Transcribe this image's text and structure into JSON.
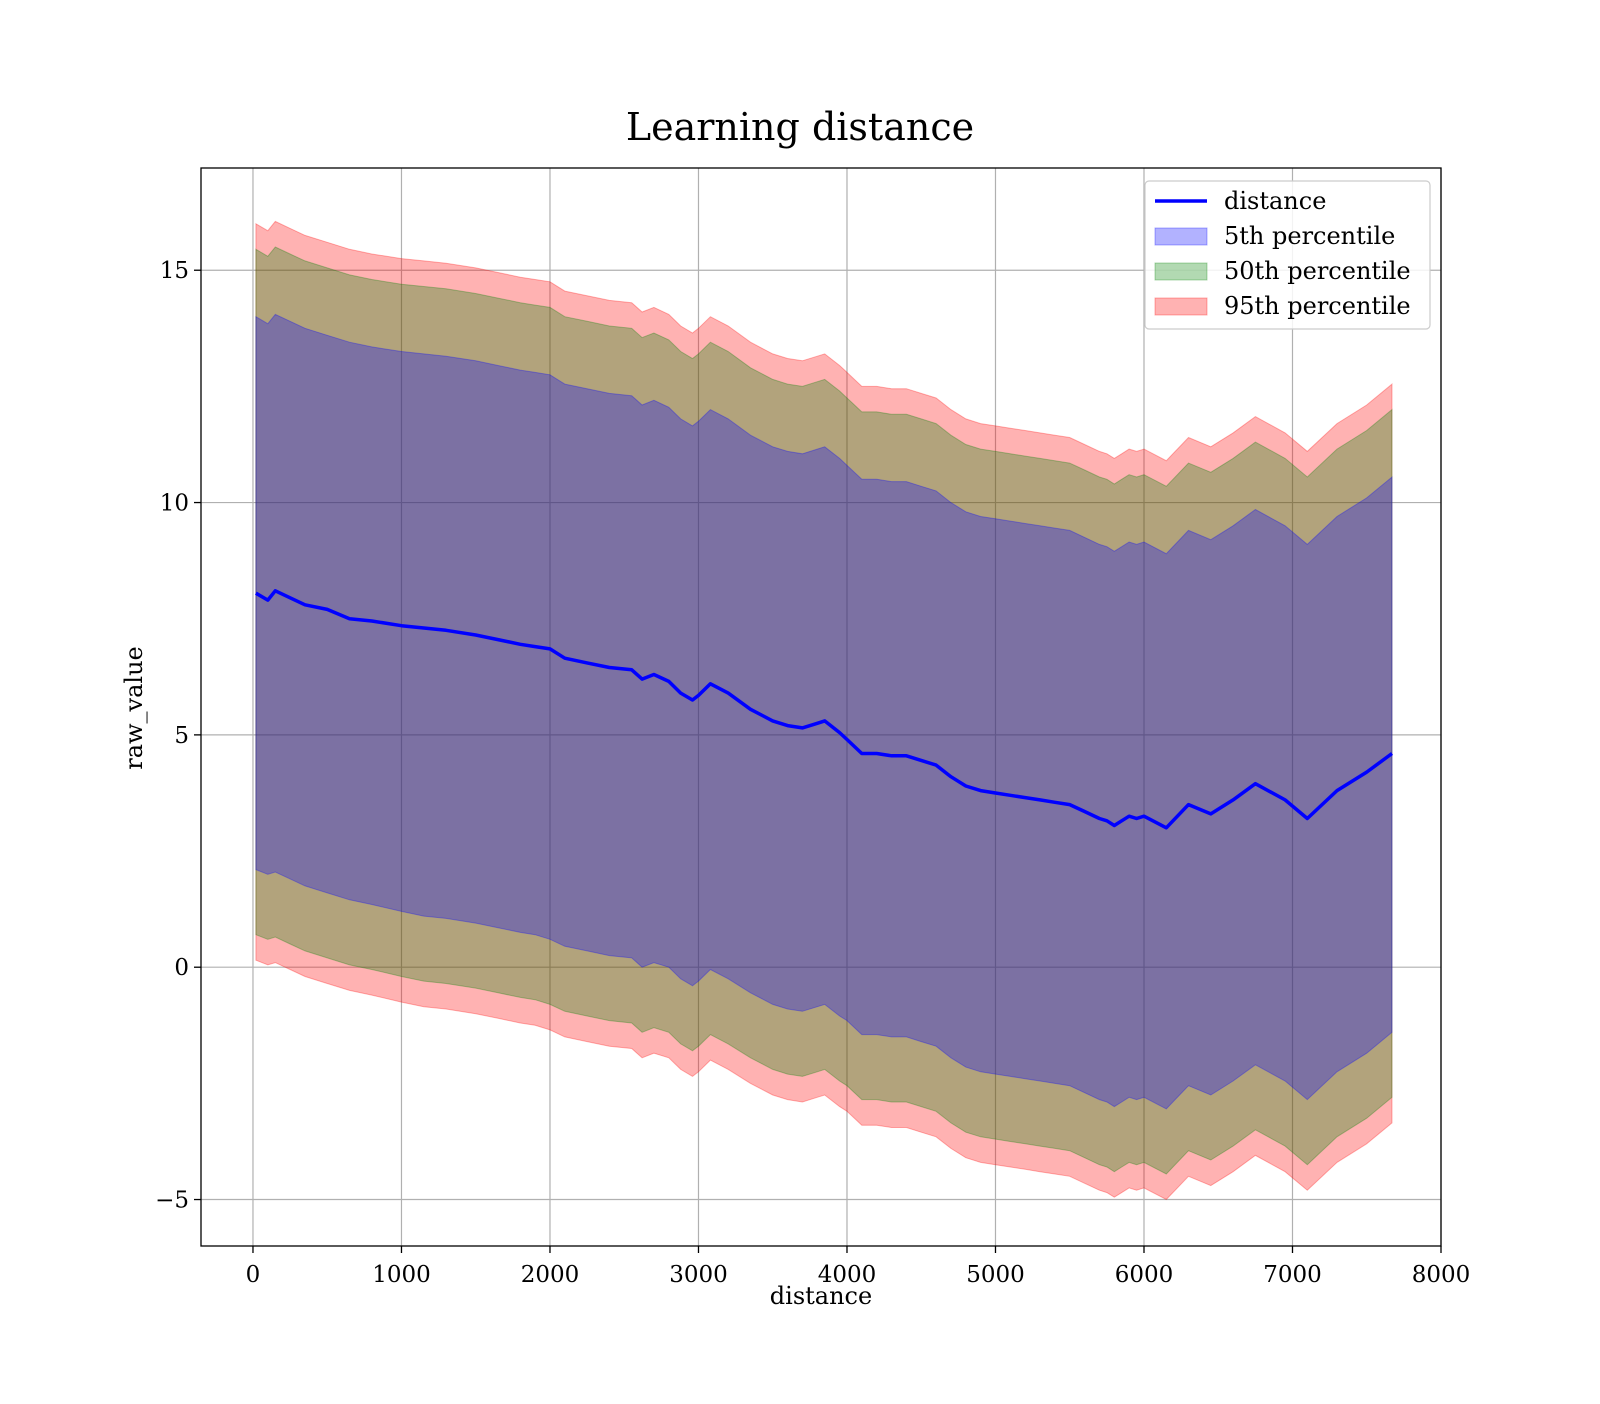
{
  "chart_data": {
    "type": "line",
    "title": "Learning distance",
    "xlabel": "distance",
    "ylabel": "raw_value",
    "xlim": [
      -350,
      8000
    ],
    "ylim": [
      -6,
      17.2
    ],
    "xticks": [
      0,
      1000,
      2000,
      3000,
      4000,
      5000,
      6000,
      7000,
      8000
    ],
    "xtick_labels": [
      "0",
      "1000",
      "2000",
      "3000",
      "4000",
      "5000",
      "6000",
      "7000",
      "8000"
    ],
    "yticks": [
      -5,
      0,
      5,
      10,
      15
    ],
    "ytick_labels": [
      "−5",
      "0",
      "5",
      "10",
      "15"
    ],
    "grid": true,
    "legend_position": "top-right",
    "legend": [
      "distance",
      "5th percentile",
      "50th percentile",
      "95th percentile"
    ],
    "x": [
      20,
      100,
      150,
      250,
      350,
      500,
      650,
      800,
      1000,
      1150,
      1300,
      1500,
      1650,
      1800,
      1900,
      2000,
      2100,
      2250,
      2400,
      2550,
      2620,
      2700,
      2800,
      2880,
      2960,
      3000,
      3080,
      3200,
      3350,
      3500,
      3600,
      3700,
      3800,
      3850,
      3950,
      4000,
      4100,
      4200,
      4300,
      4400,
      4500,
      4600,
      4700,
      4800,
      4900,
      5000,
      5100,
      5200,
      5300,
      5400,
      5500,
      5600,
      5700,
      5750,
      5800,
      5850,
      5900,
      5950,
      6000,
      6150,
      6300,
      6450,
      6600,
      6750,
      6950,
      7100,
      7300,
      7500,
      7670
    ],
    "series": [
      {
        "name": "distance",
        "color": "#0000ff",
        "values": [
          8.05,
          7.9,
          8.1,
          7.95,
          7.8,
          7.7,
          7.5,
          7.45,
          7.35,
          7.3,
          7.25,
          7.15,
          7.05,
          6.95,
          6.9,
          6.85,
          6.65,
          6.55,
          6.45,
          6.4,
          6.2,
          6.3,
          6.15,
          5.9,
          5.75,
          5.85,
          6.1,
          5.9,
          5.55,
          5.3,
          5.2,
          5.15,
          5.25,
          5.3,
          5.05,
          4.9,
          4.6,
          4.6,
          4.55,
          4.55,
          4.45,
          4.35,
          4.1,
          3.9,
          3.8,
          3.75,
          3.7,
          3.65,
          3.6,
          3.55,
          3.5,
          3.35,
          3.2,
          3.15,
          3.05,
          3.15,
          3.25,
          3.2,
          3.25,
          3.0,
          3.5,
          3.3,
          3.6,
          3.95,
          3.6,
          3.2,
          3.8,
          4.2,
          4.6
        ]
      },
      {
        "name": "5th percentile",
        "color": "#0000ff",
        "lower": [
          2.1,
          2.0,
          2.05,
          1.9,
          1.75,
          1.6,
          1.45,
          1.35,
          1.2,
          1.1,
          1.05,
          0.95,
          0.85,
          0.75,
          0.7,
          0.6,
          0.45,
          0.35,
          0.25,
          0.2,
          0.0,
          0.1,
          0.0,
          -0.25,
          -0.4,
          -0.3,
          -0.05,
          -0.25,
          -0.55,
          -0.8,
          -0.9,
          -0.95,
          -0.85,
          -0.8,
          -1.05,
          -1.15,
          -1.45,
          -1.45,
          -1.5,
          -1.5,
          -1.6,
          -1.7,
          -1.95,
          -2.15,
          -2.25,
          -2.3,
          -2.35,
          -2.4,
          -2.45,
          -2.5,
          -2.55,
          -2.7,
          -2.85,
          -2.9,
          -3.0,
          -2.9,
          -2.8,
          -2.85,
          -2.8,
          -3.05,
          -2.55,
          -2.75,
          -2.45,
          -2.1,
          -2.45,
          -2.85,
          -2.25,
          -1.85,
          -1.4
        ],
        "upper": [
          14.0,
          13.85,
          14.05,
          13.9,
          13.75,
          13.6,
          13.45,
          13.35,
          13.25,
          13.2,
          13.15,
          13.05,
          12.95,
          12.85,
          12.8,
          12.75,
          12.55,
          12.45,
          12.35,
          12.3,
          12.1,
          12.2,
          12.05,
          11.8,
          11.65,
          11.75,
          12.0,
          11.8,
          11.45,
          11.2,
          11.1,
          11.05,
          11.15,
          11.2,
          10.95,
          10.8,
          10.5,
          10.5,
          10.45,
          10.45,
          10.35,
          10.25,
          10.0,
          9.8,
          9.7,
          9.65,
          9.6,
          9.55,
          9.5,
          9.45,
          9.4,
          9.25,
          9.1,
          9.05,
          8.95,
          9.05,
          9.15,
          9.1,
          9.15,
          8.9,
          9.4,
          9.2,
          9.5,
          9.85,
          9.5,
          9.1,
          9.7,
          10.1,
          10.55
        ]
      },
      {
        "name": "50th percentile",
        "color": "#008000",
        "lower": [
          0.7,
          0.6,
          0.65,
          0.5,
          0.35,
          0.2,
          0.05,
          -0.05,
          -0.2,
          -0.3,
          -0.35,
          -0.45,
          -0.55,
          -0.65,
          -0.7,
          -0.8,
          -0.95,
          -1.05,
          -1.15,
          -1.2,
          -1.4,
          -1.3,
          -1.4,
          -1.65,
          -1.8,
          -1.7,
          -1.45,
          -1.65,
          -1.95,
          -2.2,
          -2.3,
          -2.35,
          -2.25,
          -2.2,
          -2.45,
          -2.55,
          -2.85,
          -2.85,
          -2.9,
          -2.9,
          -3.0,
          -3.1,
          -3.35,
          -3.55,
          -3.65,
          -3.7,
          -3.75,
          -3.8,
          -3.85,
          -3.9,
          -3.95,
          -4.1,
          -4.25,
          -4.3,
          -4.4,
          -4.3,
          -4.2,
          -4.25,
          -4.2,
          -4.45,
          -3.95,
          -4.15,
          -3.85,
          -3.5,
          -3.85,
          -4.25,
          -3.65,
          -3.25,
          -2.8
        ],
        "upper": [
          15.45,
          15.3,
          15.5,
          15.35,
          15.2,
          15.05,
          14.9,
          14.8,
          14.7,
          14.65,
          14.6,
          14.5,
          14.4,
          14.3,
          14.25,
          14.2,
          14.0,
          13.9,
          13.8,
          13.75,
          13.55,
          13.65,
          13.5,
          13.25,
          13.1,
          13.2,
          13.45,
          13.25,
          12.9,
          12.65,
          12.55,
          12.5,
          12.6,
          12.65,
          12.4,
          12.25,
          11.95,
          11.95,
          11.9,
          11.9,
          11.8,
          11.7,
          11.45,
          11.25,
          11.15,
          11.1,
          11.05,
          11.0,
          10.95,
          10.9,
          10.85,
          10.7,
          10.55,
          10.5,
          10.4,
          10.5,
          10.6,
          10.55,
          10.6,
          10.35,
          10.85,
          10.65,
          10.95,
          11.3,
          10.95,
          10.55,
          11.15,
          11.55,
          12.0
        ]
      },
      {
        "name": "95th percentile",
        "color": "#ff0000",
        "lower": [
          0.15,
          0.05,
          0.1,
          -0.05,
          -0.2,
          -0.35,
          -0.5,
          -0.6,
          -0.75,
          -0.85,
          -0.9,
          -1.0,
          -1.1,
          -1.2,
          -1.25,
          -1.35,
          -1.5,
          -1.6,
          -1.7,
          -1.75,
          -1.95,
          -1.85,
          -1.95,
          -2.2,
          -2.35,
          -2.25,
          -2.0,
          -2.2,
          -2.5,
          -2.75,
          -2.85,
          -2.9,
          -2.8,
          -2.75,
          -3.0,
          -3.1,
          -3.4,
          -3.4,
          -3.45,
          -3.45,
          -3.55,
          -3.65,
          -3.9,
          -4.1,
          -4.2,
          -4.25,
          -4.3,
          -4.35,
          -4.4,
          -4.45,
          -4.5,
          -4.65,
          -4.8,
          -4.85,
          -4.95,
          -4.85,
          -4.75,
          -4.8,
          -4.75,
          -5.0,
          -4.5,
          -4.7,
          -4.4,
          -4.05,
          -4.4,
          -4.8,
          -4.2,
          -3.8,
          -3.35
        ],
        "upper": [
          16.0,
          15.85,
          16.05,
          15.9,
          15.75,
          15.6,
          15.45,
          15.35,
          15.25,
          15.2,
          15.15,
          15.05,
          14.95,
          14.85,
          14.8,
          14.75,
          14.55,
          14.45,
          14.35,
          14.3,
          14.1,
          14.2,
          14.05,
          13.8,
          13.65,
          13.75,
          14.0,
          13.8,
          13.45,
          13.2,
          13.1,
          13.05,
          13.15,
          13.2,
          12.95,
          12.8,
          12.5,
          12.5,
          12.45,
          12.45,
          12.35,
          12.25,
          12.0,
          11.8,
          11.7,
          11.65,
          11.6,
          11.55,
          11.5,
          11.45,
          11.4,
          11.25,
          11.1,
          11.05,
          10.95,
          11.05,
          11.15,
          11.1,
          11.15,
          10.9,
          11.4,
          11.2,
          11.5,
          11.85,
          11.5,
          11.1,
          11.7,
          12.1,
          12.55
        ]
      }
    ]
  }
}
